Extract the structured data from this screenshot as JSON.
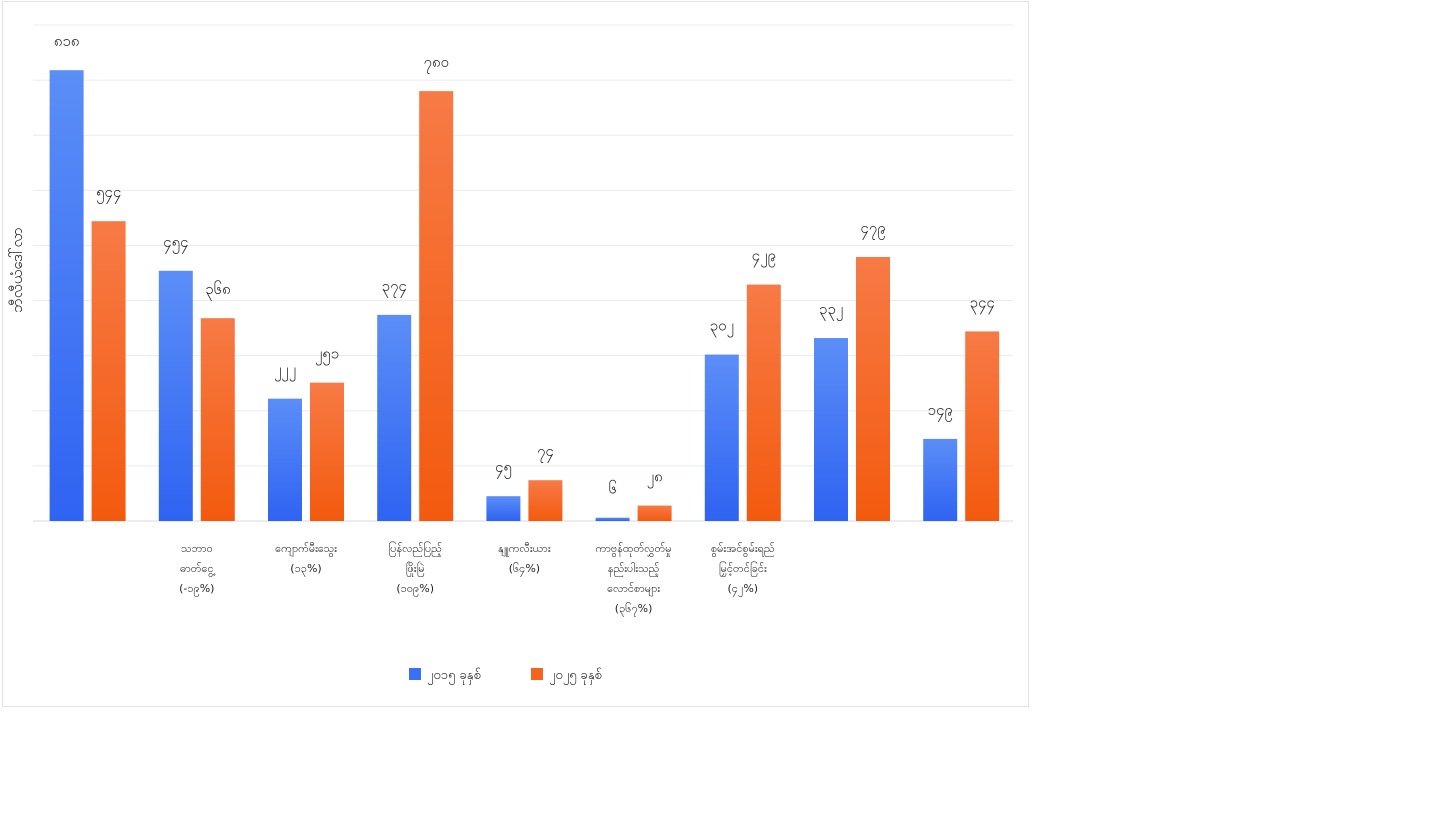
{
  "chart_data": {
    "type": "bar",
    "title": "",
    "ylabel": "ဘီလီယံဒေါ်လာ",
    "xlabel": "",
    "ylim": [
      0,
      900
    ],
    "grid": true,
    "legend_position": "bottom",
    "categories": [
      [
        ""
      ],
      [
        "သဘာဝ",
        "ဓာတ်ငွေ့",
        "(-၁၉%)"
      ],
      [
        "ကျောက်မီးသွေး",
        "(၁၃%)"
      ],
      [
        "ပြန်လည်ပြည့်",
        "ဖြိုးမြဲ",
        "(၁၀၉%)"
      ],
      [
        "နျူကလီးယား",
        "(၆၄%)"
      ],
      [
        "ကာဗွန်ထုတ်လွှတ်မှု",
        "နည်းပါးသည့်",
        "လောင်စာများ",
        "(၃၆၇%)"
      ],
      [
        "စွမ်းအင်စွမ်းရည်",
        "မြှင့်တင်ခြင်း",
        "(၄၂%)"
      ],
      [
        ""
      ],
      [
        ""
      ]
    ],
    "series": [
      {
        "name": "၂၀၁၅ ခုနှစ်",
        "color": "#3b6ff5",
        "values": [
          818,
          454,
          222,
          374,
          45,
          6,
          302,
          332,
          149
        ],
        "labels": [
          "၈၁၈",
          "၄၅၄",
          "၂၂၂",
          "၃၇၄",
          "၄၅",
          "၆",
          "၃၀၂",
          "၃၃၂",
          "၁၄၉"
        ]
      },
      {
        "name": "၂၀၂၅ ခုနှစ်",
        "color": "#f5631f",
        "values": [
          544,
          368,
          251,
          780,
          74,
          28,
          429,
          479,
          344
        ],
        "labels": [
          "၅၄၄",
          "၃၆၈",
          "၂၅၁",
          "၇၈၀",
          "၇၄",
          "၂၈",
          "၄၂၉",
          "၄၇၉",
          "၃၄၄"
        ]
      }
    ]
  }
}
